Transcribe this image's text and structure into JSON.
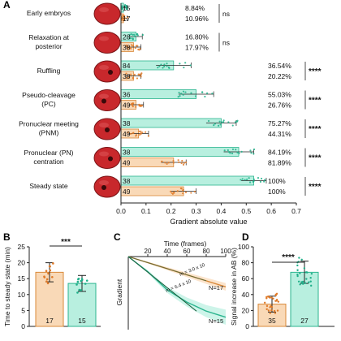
{
  "colors": {
    "teal_fill": "#b8efdf",
    "teal_edge": "#2bb58f",
    "teal_dot": "#20b08a",
    "orange_fill": "#f9d9b7",
    "orange_edge": "#d9893a",
    "orange_dot": "#e07a28",
    "embryo": "#c8282c",
    "embryo_edge": "#7a1416",
    "axis": "#222222"
  },
  "panel_labels": {
    "a": "A",
    "b": "B",
    "c": "C",
    "d": "D"
  },
  "chart_data": [
    {
      "id": "A",
      "type": "bar",
      "orientation": "horizontal",
      "xlabel": "Gradient absolute value",
      "xlim": [
        0,
        0.7
      ],
      "xticks": [
        "0.0",
        "0.1",
        "0.2",
        "0.3",
        "0.4",
        "0.5",
        "0.6",
        "0.7"
      ],
      "categories": [
        "Early embryos",
        "Relaxation at posterior",
        "Ruffling",
        "Pseudo-cleavage (PC)",
        "Pronuclear meeting (PNM)",
        "Pronuclear (PN) centration",
        "Steady state"
      ],
      "series": [
        {
          "name": "",
          "color_key": "teal",
          "n": [
            "15",
            "28",
            "84",
            "36",
            "38",
            "38",
            "38"
          ],
          "values": [
            0.01,
            0.06,
            0.21,
            0.3,
            0.4,
            0.47,
            0.53
          ],
          "errors": [
            0.015,
            0.025,
            0.07,
            0.07,
            0.06,
            0.06,
            0.05
          ],
          "percent": [
            "8.84%",
            "16.80%",
            "36.54%",
            "55.03%",
            "75.27%",
            "84.19%",
            "100%"
          ]
        },
        {
          "name": "",
          "color_key": "orange",
          "n": [
            "17",
            "38",
            "38",
            "49",
            "49",
            "49",
            "49"
          ],
          "values": [
            0.01,
            0.05,
            0.05,
            0.06,
            0.07,
            0.21,
            0.25
          ],
          "errors": [
            0.015,
            0.03,
            0.03,
            0.03,
            0.04,
            0.05,
            0.05
          ],
          "percent": [
            "10.96%",
            "17.97%",
            "20.22%",
            "26.76%",
            "44.31%",
            "81.89%",
            "100%"
          ]
        }
      ],
      "significance": [
        "ns",
        "ns",
        "****",
        "****",
        "****",
        "****",
        "****"
      ]
    },
    {
      "id": "B",
      "type": "bar",
      "ylabel": "Time to steady state (min)",
      "ylim": [
        0,
        25
      ],
      "yticks": [
        "0",
        "5",
        "10",
        "15",
        "20",
        "25"
      ],
      "categories": [
        "",
        ""
      ],
      "values": [
        17,
        13.5
      ],
      "errors": [
        3,
        2.5
      ],
      "n": [
        "17",
        "15"
      ],
      "significance": "***"
    },
    {
      "id": "C",
      "type": "line",
      "xlabel": "Time (frames)",
      "ylabel": "Gradient",
      "xlim": [
        0,
        100
      ],
      "xticks": [
        "20",
        "40",
        "60",
        "80",
        "100"
      ],
      "series": [
        {
          "name": "",
          "color_key": "orange",
          "n_label": "N=17",
          "slope_label": "m = 3.0 x 10",
          "x": [
            0,
            20,
            40,
            60,
            80,
            100
          ],
          "y": [
            0,
            -0.04,
            -0.08,
            -0.12,
            -0.16,
            -0.2
          ]
        },
        {
          "name": "",
          "color_key": "teal",
          "n_label": "N=15",
          "slope_label": "m = 6.4 x 10",
          "x": [
            0,
            20,
            40,
            60,
            80,
            100
          ],
          "y": [
            0,
            -0.1,
            -0.22,
            -0.3,
            -0.36,
            -0.4
          ]
        }
      ]
    },
    {
      "id": "D",
      "type": "bar",
      "ylabel": "Signal increase in AB (%)",
      "ylim": [
        0,
        100
      ],
      "yticks": [
        "0",
        "20",
        "40",
        "60",
        "80",
        "100"
      ],
      "categories": [
        "",
        ""
      ],
      "values": [
        28,
        68
      ],
      "errors": [
        10,
        14
      ],
      "n": [
        "35",
        "27"
      ],
      "significance": "****"
    }
  ]
}
